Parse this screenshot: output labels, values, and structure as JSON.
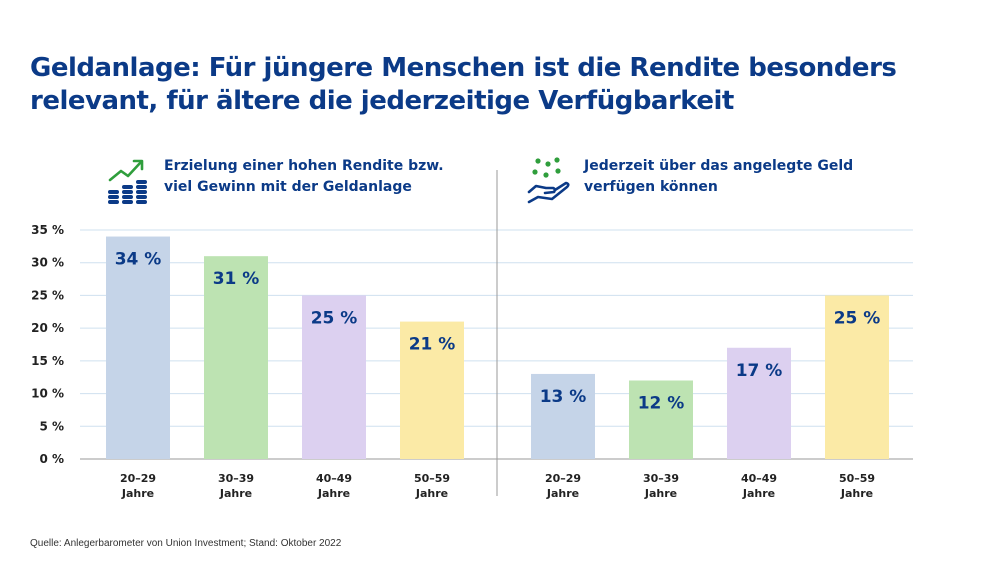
{
  "title": {
    "line1": "Geldanlage: Für jüngere Menschen ist die Rendite besonders",
    "line2": "relevant, für ältere die jederzeitige Verfügbarkeit"
  },
  "source": "Quelle: Anlegerbarometer von Union Investment; Stand: Oktober 2022",
  "icons": {
    "left": "growth-coins-icon",
    "right": "hand-money-icon"
  },
  "colors": {
    "title": "#0b3a87",
    "bars": [
      "#c5d4e8",
      "#bde3b2",
      "#dcd0f0",
      "#fbeaa6"
    ],
    "icon_green": "#2f9e3c",
    "icon_blue": "#0b3a87"
  },
  "chart_data": [
    {
      "type": "bar",
      "title_lines": [
        "Erzielung einer hohen Rendite bzw.",
        "viel Gewinn mit der Geldanlage"
      ],
      "categories": [
        "20–29 Jahre",
        "30–39 Jahre",
        "40–49 Jahre",
        "50–59 Jahre"
      ],
      "values": [
        34,
        31,
        25,
        21
      ],
      "value_labels": [
        "34 %",
        "31 %",
        "25 %",
        "21 %"
      ],
      "ylim": [
        0,
        35
      ],
      "yticks": [
        "0 %",
        "5 %",
        "10 %",
        "15 %",
        "20 %",
        "25 %",
        "30 %",
        "35 %"
      ],
      "grid": true
    },
    {
      "type": "bar",
      "title_lines": [
        "Jederzeit über das angelegte Geld",
        "verfügen können"
      ],
      "categories": [
        "20–29 Jahre",
        "30–39 Jahre",
        "40–49 Jahre",
        "50–59 Jahre"
      ],
      "values": [
        13,
        12,
        17,
        25
      ],
      "value_labels": [
        "13 %",
        "12 %",
        "17 %",
        "25 %"
      ],
      "ylim": [
        0,
        35
      ],
      "grid": true
    }
  ]
}
